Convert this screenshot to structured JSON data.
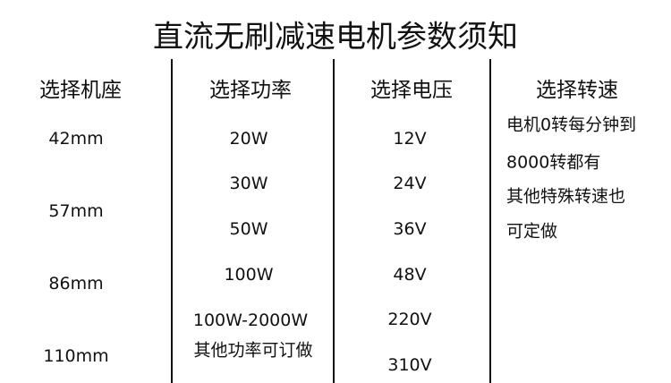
{
  "title": "直流无刷减速电机参数须知",
  "columns": [
    {
      "header": "选择机座",
      "values": [
        "42mm",
        "57mm",
        "86mm",
        "110mm"
      ]
    },
    {
      "header": "选择功率",
      "values": [
        "20W",
        "30W",
        "50W",
        "100W",
        "100W-2000W",
        "其他功率可订做"
      ]
    },
    {
      "header": "选择电压",
      "values": [
        "12V",
        "24V",
        "36V",
        "48V",
        "220V",
        "310V"
      ]
    },
    {
      "header": "选择转速",
      "values": [
        "电机0转每分钟到",
        "8000转都有",
        "其他特殊转速也",
        "可定做"
      ]
    }
  ]
}
